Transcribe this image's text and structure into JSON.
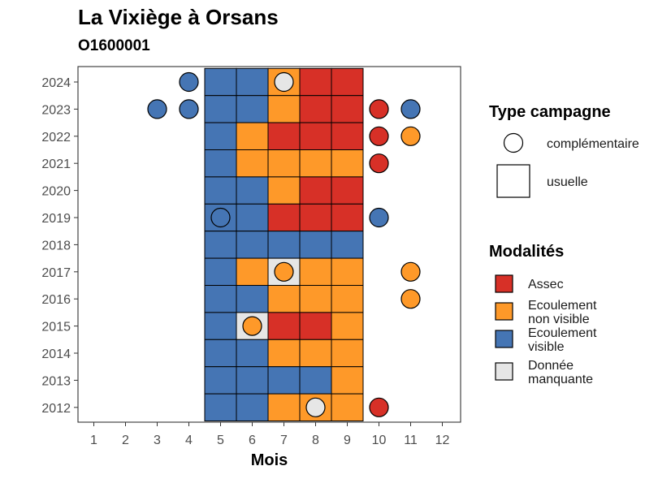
{
  "chart_data": {
    "type": "heatmap",
    "title": "La Vixiège à Orsans",
    "subtitle": "O1600001",
    "xlabel": "Mois",
    "ylabel": "",
    "x_ticks": [
      "1",
      "2",
      "3",
      "4",
      "5",
      "6",
      "7",
      "8",
      "9",
      "10",
      "11",
      "12"
    ],
    "y_ticks": [
      "2012",
      "2013",
      "2014",
      "2015",
      "2016",
      "2017",
      "2018",
      "2019",
      "2020",
      "2021",
      "2022",
      "2023",
      "2024"
    ],
    "grid": false,
    "legend_position": "right",
    "colors": {
      "Assec": "#d73027",
      "Ecoulement non visible": "#fe9929",
      "Ecoulement visible": "#4575b4",
      "Donnée manquante": "#e6e6e6"
    },
    "legend_shape": {
      "title": "Type campagne",
      "entries": [
        {
          "label": "complémentaire",
          "shape": "circle"
        },
        {
          "label": "usuelle",
          "shape": "square"
        }
      ]
    },
    "legend_fill": {
      "title": "Modalités",
      "entries": [
        {
          "key": "Assec",
          "lines": [
            "Assec"
          ]
        },
        {
          "key": "Ecoulement non visible",
          "lines": [
            "Ecoulement",
            "non visible"
          ]
        },
        {
          "key": "Ecoulement visible",
          "lines": [
            "Ecoulement",
            "visible"
          ]
        },
        {
          "key": "Donnée manquante",
          "lines": [
            "Donnée",
            "manquante"
          ]
        }
      ]
    },
    "usuelle": [
      {
        "year": 2024,
        "months": {
          "5": "Ecoulement visible",
          "6": "Ecoulement visible",
          "7": "Ecoulement non visible",
          "8": "Assec",
          "9": "Assec"
        }
      },
      {
        "year": 2023,
        "months": {
          "5": "Ecoulement visible",
          "6": "Ecoulement visible",
          "7": "Ecoulement non visible",
          "8": "Assec",
          "9": "Assec"
        }
      },
      {
        "year": 2022,
        "months": {
          "5": "Ecoulement visible",
          "6": "Ecoulement non visible",
          "7": "Assec",
          "8": "Assec",
          "9": "Assec"
        }
      },
      {
        "year": 2021,
        "months": {
          "5": "Ecoulement visible",
          "6": "Ecoulement non visible",
          "7": "Ecoulement non visible",
          "8": "Ecoulement non visible",
          "9": "Ecoulement non visible"
        }
      },
      {
        "year": 2020,
        "months": {
          "5": "Ecoulement visible",
          "6": "Ecoulement visible",
          "7": "Ecoulement non visible",
          "8": "Assec",
          "9": "Assec"
        }
      },
      {
        "year": 2019,
        "months": {
          "5": "Ecoulement visible",
          "6": "Ecoulement visible",
          "7": "Assec",
          "8": "Assec",
          "9": "Assec"
        }
      },
      {
        "year": 2018,
        "months": {
          "5": "Ecoulement visible",
          "6": "Ecoulement visible",
          "7": "Ecoulement visible",
          "8": "Ecoulement visible",
          "9": "Ecoulement visible"
        }
      },
      {
        "year": 2017,
        "months": {
          "5": "Ecoulement visible",
          "6": "Ecoulement non visible",
          "7": "Donnée manquante",
          "8": "Ecoulement non visible",
          "9": "Ecoulement non visible"
        }
      },
      {
        "year": 2016,
        "months": {
          "5": "Ecoulement visible",
          "6": "Ecoulement visible",
          "7": "Ecoulement non visible",
          "8": "Ecoulement non visible",
          "9": "Ecoulement non visible"
        }
      },
      {
        "year": 2015,
        "months": {
          "5": "Ecoulement visible",
          "6": "Donnée manquante",
          "7": "Assec",
          "8": "Assec",
          "9": "Ecoulement non visible"
        }
      },
      {
        "year": 2014,
        "months": {
          "5": "Ecoulement visible",
          "6": "Ecoulement visible",
          "7": "Ecoulement non visible",
          "8": "Ecoulement non visible",
          "9": "Ecoulement non visible"
        }
      },
      {
        "year": 2013,
        "months": {
          "5": "Ecoulement visible",
          "6": "Ecoulement visible",
          "7": "Ecoulement visible",
          "8": "Ecoulement visible",
          "9": "Ecoulement non visible"
        }
      },
      {
        "year": 2012,
        "months": {
          "5": "Ecoulement visible",
          "6": "Ecoulement visible",
          "7": "Ecoulement non visible",
          "8": "Ecoulement non visible",
          "9": "Ecoulement non visible"
        }
      }
    ],
    "complementaire": [
      {
        "year": 2024,
        "month": 4,
        "value": "Ecoulement visible"
      },
      {
        "year": 2024,
        "month": 7,
        "value": "Donnée manquante"
      },
      {
        "year": 2023,
        "month": 3,
        "value": "Ecoulement visible"
      },
      {
        "year": 2023,
        "month": 4,
        "value": "Ecoulement visible"
      },
      {
        "year": 2023,
        "month": 10,
        "value": "Assec"
      },
      {
        "year": 2023,
        "month": 11,
        "value": "Ecoulement visible"
      },
      {
        "year": 2022,
        "month": 10,
        "value": "Assec"
      },
      {
        "year": 2022,
        "month": 11,
        "value": "Ecoulement non visible"
      },
      {
        "year": 2021,
        "month": 10,
        "value": "Assec"
      },
      {
        "year": 2019,
        "month": 5,
        "value": "Ecoulement visible"
      },
      {
        "year": 2019,
        "month": 10,
        "value": "Ecoulement visible"
      },
      {
        "year": 2017,
        "month": 7,
        "value": "Ecoulement non visible"
      },
      {
        "year": 2017,
        "month": 11,
        "value": "Ecoulement non visible"
      },
      {
        "year": 2016,
        "month": 11,
        "value": "Ecoulement non visible"
      },
      {
        "year": 2015,
        "month": 6,
        "value": "Ecoulement non visible"
      },
      {
        "year": 2012,
        "month": 8,
        "value": "Donnée manquante"
      },
      {
        "year": 2012,
        "month": 10,
        "value": "Assec"
      }
    ]
  }
}
